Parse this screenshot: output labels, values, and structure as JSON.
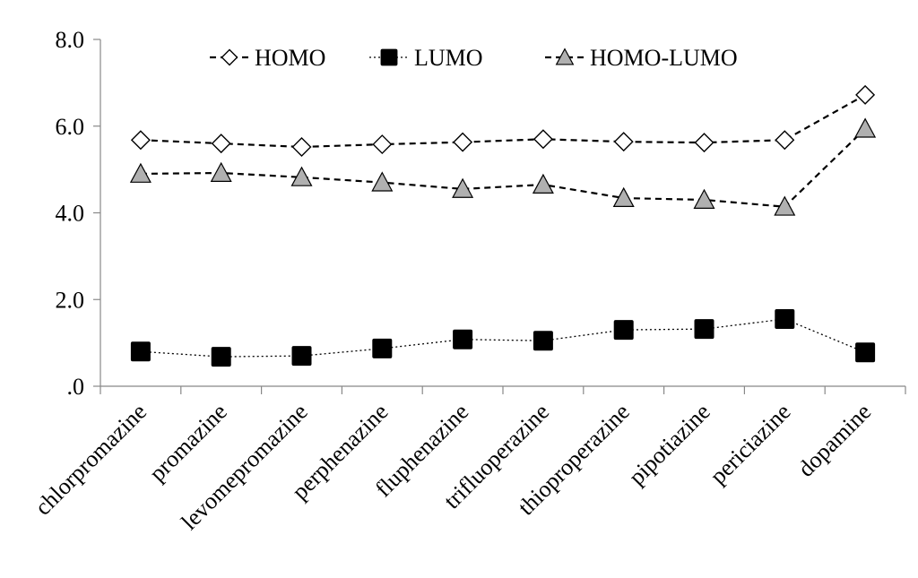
{
  "chart_data": {
    "type": "line",
    "categories": [
      "chlorpromazine",
      "promazine",
      "levomepromazine",
      "perphenazine",
      "fluphenazine",
      "trifluoperazine",
      "thioproperazine",
      "pipotiazine",
      "periciazine",
      "dopamine"
    ],
    "series": [
      {
        "name": "HOMO",
        "values": [
          5.68,
          5.6,
          5.52,
          5.58,
          5.63,
          5.7,
          5.64,
          5.62,
          5.68,
          6.72
        ],
        "marker": "diamond",
        "fill": "#ffffff",
        "line": "dashed"
      },
      {
        "name": "LUMO",
        "values": [
          0.8,
          0.68,
          0.7,
          0.87,
          1.08,
          1.05,
          1.3,
          1.32,
          1.55,
          0.78
        ],
        "marker": "square",
        "fill": "#000000",
        "line": "dotted"
      },
      {
        "name": "HOMO-LUMO",
        "values": [
          4.9,
          4.92,
          4.82,
          4.7,
          4.55,
          4.65,
          4.34,
          4.3,
          4.14,
          5.94
        ],
        "marker": "triangle",
        "fill": "#b0b0b0",
        "line": "dashed"
      }
    ],
    "yticks": [
      "8.0",
      "6.0",
      "4.0",
      "2.0",
      ".0"
    ],
    "ylim": [
      0,
      8
    ],
    "grid": false,
    "legend": "top"
  }
}
